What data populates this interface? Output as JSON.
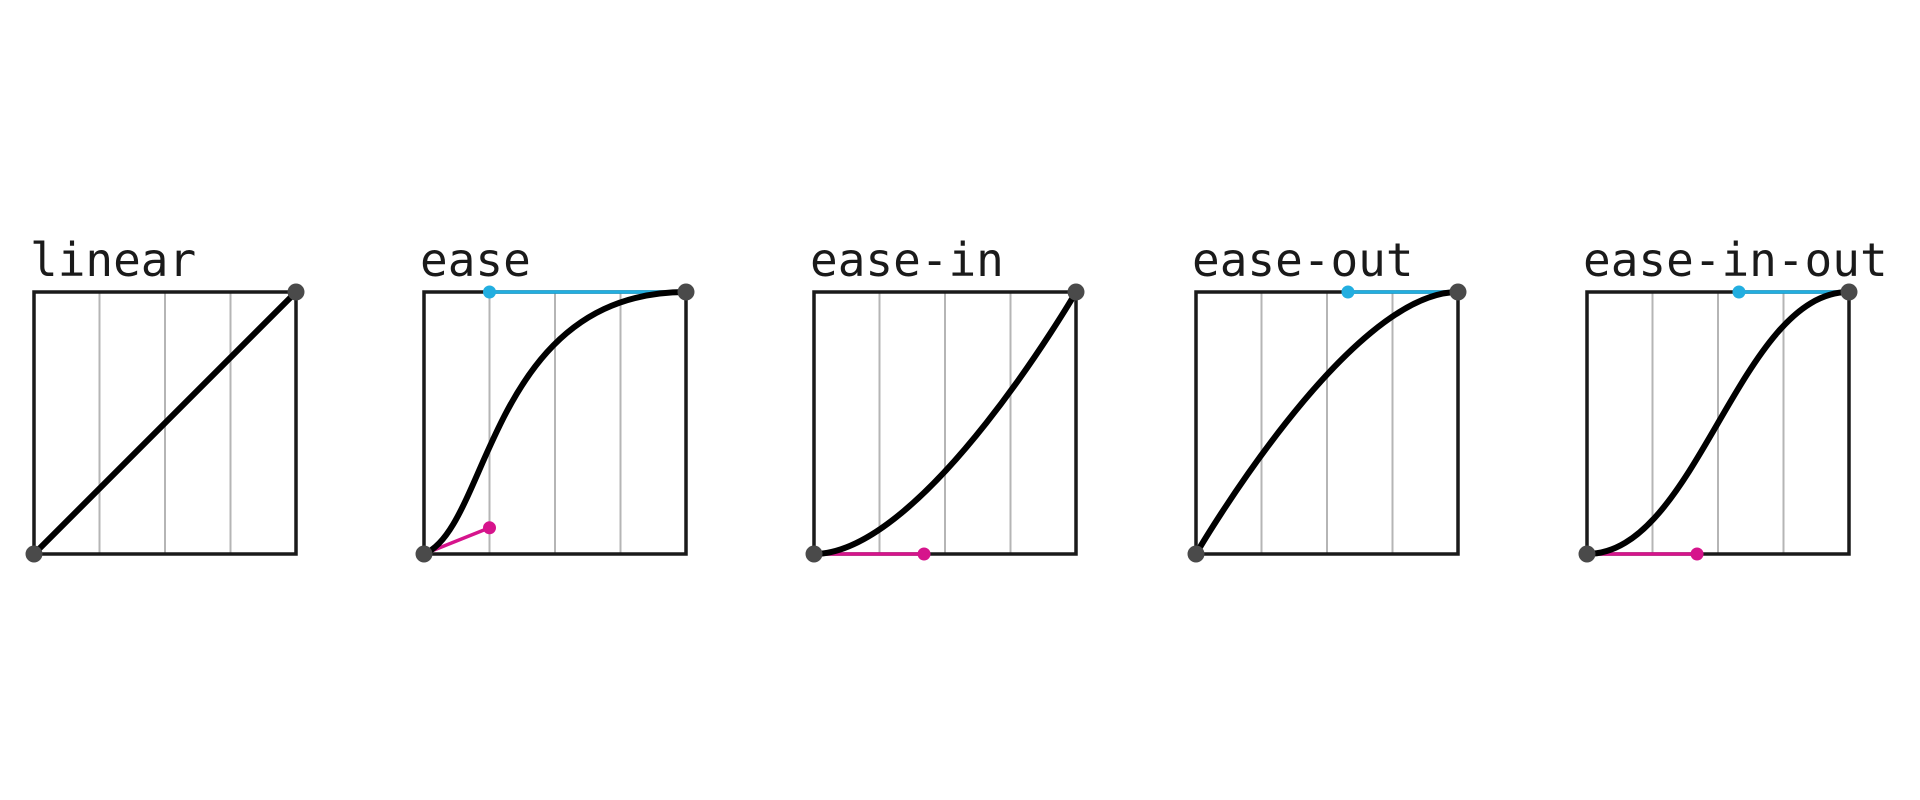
{
  "colors": {
    "curve": "#000000",
    "frame": "#1a1a1a",
    "grid": "#b5b5b5",
    "endpoint": "#4a4a4a",
    "handle_start": "#d6148c",
    "handle_end": "#22aee0"
  },
  "curves": [
    {
      "label": "linear",
      "p1": [
        0.0,
        0.0
      ],
      "p2": [
        1.0,
        1.0
      ],
      "show_handles": false
    },
    {
      "label": "ease",
      "p1": [
        0.25,
        0.1
      ],
      "p2": [
        0.25,
        1.0
      ],
      "show_handles": true
    },
    {
      "label": "ease-in",
      "p1": [
        0.42,
        0.0
      ],
      "p2": [
        1.0,
        1.0
      ],
      "show_handles": true
    },
    {
      "label": "ease-out",
      "p1": [
        0.0,
        0.0
      ],
      "p2": [
        0.58,
        1.0
      ],
      "show_handles": true
    },
    {
      "label": "ease-in-out",
      "p1": [
        0.42,
        0.0
      ],
      "p2": [
        0.58,
        1.0
      ],
      "show_handles": true
    }
  ]
}
